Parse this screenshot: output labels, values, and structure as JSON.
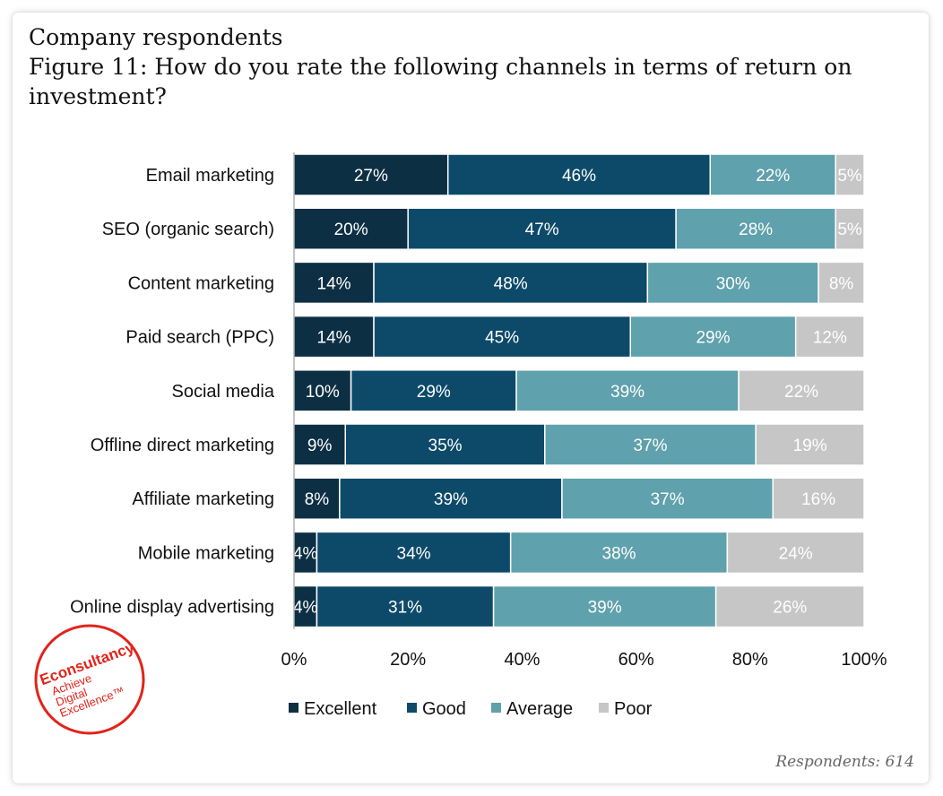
{
  "header": {
    "section": "Company respondents",
    "title": "Figure 11: How do you rate the following channels in terms of return on investment?"
  },
  "footnote": "Respondents: 614",
  "logo": {
    "brand": "Econsultancy",
    "tagline_1": "Achieve",
    "tagline_2": "Digital",
    "tagline_3": "Excellence™",
    "color": "#e2231a"
  },
  "chart_data": {
    "type": "bar",
    "orientation": "horizontal",
    "stacked": true,
    "percent": true,
    "categories": [
      "Email marketing",
      "SEO (organic search)",
      "Content marketing",
      "Paid search (PPC)",
      "Social media",
      "Offline direct marketing",
      "Affiliate marketing",
      "Mobile marketing",
      "Online display advertising"
    ],
    "series": [
      {
        "name": "Excellent",
        "color": "#0d2f44",
        "values": [
          27,
          20,
          14,
          14,
          10,
          9,
          8,
          4,
          4
        ]
      },
      {
        "name": "Good",
        "color": "#0d4a69",
        "values": [
          46,
          47,
          48,
          45,
          29,
          35,
          39,
          34,
          31
        ]
      },
      {
        "name": "Average",
        "color": "#5fa1ac",
        "values": [
          22,
          28,
          30,
          29,
          39,
          37,
          37,
          38,
          39
        ]
      },
      {
        "name": "Poor",
        "color": "#c6c6c6",
        "values": [
          5,
          5,
          8,
          12,
          22,
          19,
          16,
          24,
          26
        ]
      }
    ],
    "xlim": [
      0,
      100
    ],
    "xticks": [
      "0%",
      "20%",
      "40%",
      "60%",
      "80%",
      "100%"
    ],
    "grid": false,
    "legend_position": "bottom"
  }
}
